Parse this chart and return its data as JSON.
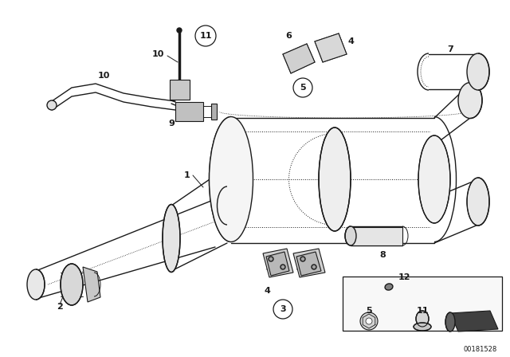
{
  "bg_color": "#ffffff",
  "line_color": "#1a1a1a",
  "watermark": "00181528",
  "figsize": [
    6.4,
    4.48
  ],
  "dpi": 100,
  "xlim": [
    0,
    640
  ],
  "ylim": [
    0,
    448
  ]
}
